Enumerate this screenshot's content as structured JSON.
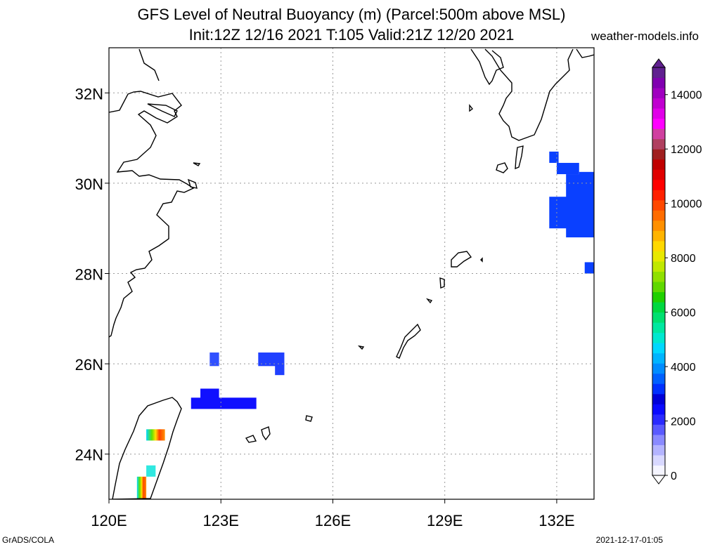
{
  "header": {
    "title_line1": "GFS Level of Neutral Buoyancy (m) (Parcel:500m above MSL)",
    "title_line2": "Init:12Z 12/16 2021 T:105 Valid:21Z 12/20 2021",
    "site": "weather-models.info"
  },
  "footer": {
    "left": "GrADS/COLA",
    "right": "2021-12-17-01:05"
  },
  "map": {
    "lon_range": [
      120,
      133.0
    ],
    "lat_range": [
      23.0,
      33.0
    ],
    "lon_ticks": [
      {
        "value": 120,
        "label": "120E"
      },
      {
        "value": 123,
        "label": "123E"
      },
      {
        "value": 126,
        "label": "126E"
      },
      {
        "value": 129,
        "label": "129E"
      },
      {
        "value": 132,
        "label": "132E"
      }
    ],
    "lat_ticks": [
      {
        "value": 24,
        "label": "24N"
      },
      {
        "value": 26,
        "label": "26N"
      },
      {
        "value": 28,
        "label": "28N"
      },
      {
        "value": 30,
        "label": "30N"
      },
      {
        "value": 32,
        "label": "32N"
      }
    ],
    "grid_lines": true
  },
  "colorbar": {
    "min": 0,
    "max": 15000,
    "ticks": [
      {
        "value": 0,
        "label": "0"
      },
      {
        "value": 2000,
        "label": "2000"
      },
      {
        "value": 4000,
        "label": "4000"
      },
      {
        "value": 6000,
        "label": "6000"
      },
      {
        "value": 8000,
        "label": "8000"
      },
      {
        "value": 10000,
        "label": "10000"
      },
      {
        "value": 12000,
        "label": "12000"
      },
      {
        "value": 14000,
        "label": "14000"
      }
    ],
    "colors": [
      "#f5f5ff",
      "#d8d8ff",
      "#b4b4ff",
      "#8a8aff",
      "#5a5aff",
      "#2a2aff",
      "#0a0aff",
      "#0000d8",
      "#0030ff",
      "#0060ff",
      "#008cff",
      "#00b4ff",
      "#00d8ff",
      "#00e8d0",
      "#00e8a0",
      "#00e070",
      "#00d840",
      "#20d000",
      "#60d800",
      "#90e000",
      "#c0e800",
      "#e8e800",
      "#ffd800",
      "#ffb400",
      "#ff9000",
      "#ff6c00",
      "#ff4800",
      "#ff2000",
      "#ff0000",
      "#e00000",
      "#c00000",
      "#a02020",
      "#b04060",
      "#d040a0",
      "#ff00ff",
      "#e000e8",
      "#c000d0",
      "#a000c0",
      "#8000b0",
      "#602090"
    ]
  },
  "fields": [
    {
      "lon0": 131.8,
      "lon1": 132.05,
      "lat0": 30.45,
      "lat1": 30.7,
      "color": "#0a40ff"
    },
    {
      "lon0": 132.0,
      "lon1": 132.6,
      "lat0": 30.2,
      "lat1": 30.45,
      "color": "#0a40ff"
    },
    {
      "lon0": 132.6,
      "lon1": 133.0,
      "lat0": 29.95,
      "lat1": 30.25,
      "color": "#0a40ff"
    },
    {
      "lon0": 132.25,
      "lon1": 133.0,
      "lat0": 28.8,
      "lat1": 30.2,
      "color": "#0a40ff"
    },
    {
      "lon0": 131.8,
      "lon1": 132.3,
      "lat0": 29.0,
      "lat1": 29.7,
      "color": "#0a40ff"
    },
    {
      "lon0": 132.75,
      "lon1": 133.0,
      "lat0": 28.0,
      "lat1": 28.25,
      "color": "#0a40ff"
    },
    {
      "lon0": 122.7,
      "lon1": 122.95,
      "lat0": 25.95,
      "lat1": 26.25,
      "color": "#3050ff"
    },
    {
      "lon0": 124.0,
      "lon1": 124.7,
      "lat0": 25.95,
      "lat1": 26.25,
      "color": "#2040ff"
    },
    {
      "lon0": 124.45,
      "lon1": 124.7,
      "lat0": 25.75,
      "lat1": 26.0,
      "color": "#2040ff"
    },
    {
      "lon0": 122.45,
      "lon1": 122.95,
      "lat0": 25.2,
      "lat1": 25.45,
      "color": "#1010ff"
    },
    {
      "lon0": 122.2,
      "lon1": 123.95,
      "lat0": 25.0,
      "lat1": 25.25,
      "color": "#1010ff"
    },
    {
      "lon0": 121.0,
      "lon1": 121.5,
      "lat0": 24.3,
      "lat1": 24.55,
      "color": "rainbow"
    },
    {
      "lon0": 121.0,
      "lon1": 121.25,
      "lat0": 23.5,
      "lat1": 23.75,
      "color": "cyan"
    },
    {
      "lon0": 120.75,
      "lon1": 121.0,
      "lat0": 23.0,
      "lat1": 23.5,
      "color": "rainbow"
    }
  ]
}
